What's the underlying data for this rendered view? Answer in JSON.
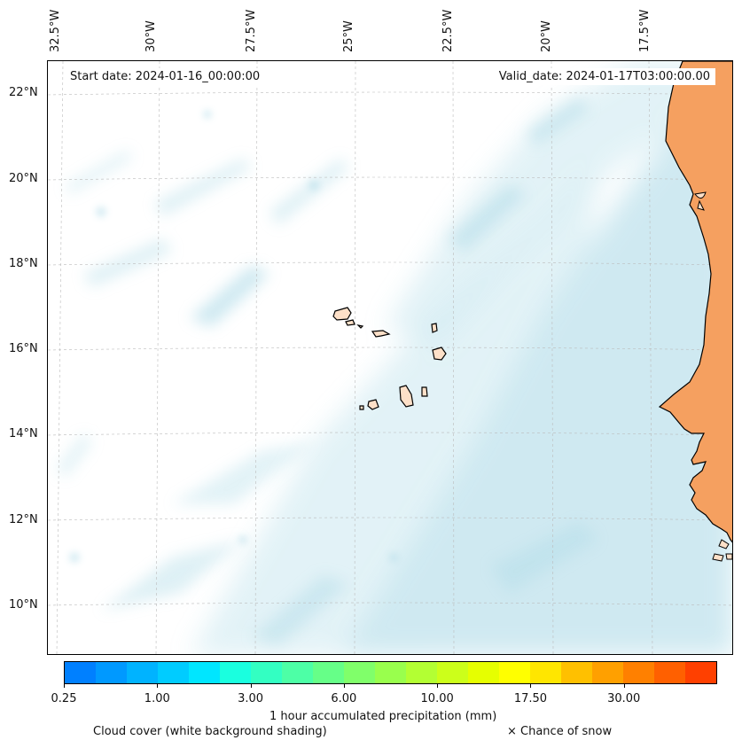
{
  "header": {
    "start_date": "Start date: 2024-01-16_00:00:00",
    "valid_date": "Valid_date: 2024-01-17T03:00:00.00"
  },
  "longitude_labels": [
    "32.5°W",
    "30°W",
    "27.5°W",
    "25°W",
    "22.5°W",
    "20°W",
    "17.5°W"
  ],
  "latitude_labels": [
    "22°N",
    "20°N",
    "18°N",
    "16°N",
    "14°N",
    "12°N",
    "10°N"
  ],
  "colorbar": {
    "colors": [
      "#0080ff",
      "#0099ff",
      "#00b3ff",
      "#00ccff",
      "#00e6ff",
      "#1affdf",
      "#33ffc2",
      "#4dffa6",
      "#66ff88",
      "#80ff6a",
      "#99ff4d",
      "#b3ff33",
      "#ccff1a",
      "#e6ff00",
      "#ffff00",
      "#ffe600",
      "#ffc000",
      "#ffa000",
      "#ff8000",
      "#ff6000",
      "#ff4000"
    ],
    "tick_labels": [
      "0.25",
      "1.00",
      "3.00",
      "6.00",
      "10.00",
      "17.50",
      "30.00"
    ],
    "label": "1 hour accumulated precipitation (mm)"
  },
  "legend": {
    "cloud_cover": "Cloud cover (white background shading)",
    "snow": "× Chance of snow"
  },
  "colors": {
    "cloud": "#a9d8e6",
    "land": "#f5a060",
    "island": "#fde0c8",
    "grid": "#bbbbbb"
  }
}
